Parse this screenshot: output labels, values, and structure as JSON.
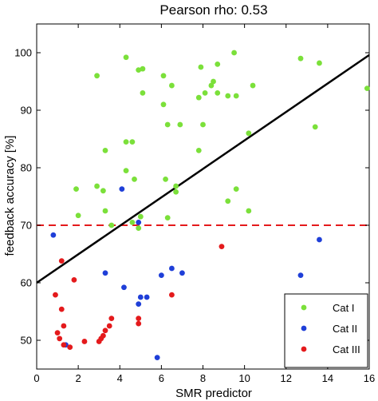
{
  "chart_data": {
    "type": "scatter",
    "title": "Pearson  rho:  0.53",
    "xlabel": "SMR predictor",
    "ylabel": "feedback accuracy  [%]",
    "xlim": [
      0,
      16
    ],
    "ylim": [
      45,
      105
    ],
    "xticks": [
      0,
      2,
      4,
      6,
      8,
      10,
      12,
      14,
      16
    ],
    "yticks": [
      50,
      60,
      70,
      80,
      90,
      100
    ],
    "grid": false,
    "legend_position": "bottom-right",
    "threshold_line": {
      "y": 70,
      "color": "#e41a1c",
      "style": "dashed"
    },
    "regression_line": {
      "x": [
        0,
        16
      ],
      "y": [
        60,
        99.6
      ],
      "color": "#000000"
    },
    "series": [
      {
        "name": "Cat I",
        "color": "#7be03a",
        "points": [
          [
            2.9,
            96
          ],
          [
            4.3,
            99.2
          ],
          [
            4.9,
            97
          ],
          [
            5.1,
            97.2
          ],
          [
            5.1,
            93
          ],
          [
            6.1,
            96
          ],
          [
            6.5,
            94.3
          ],
          [
            6.1,
            91
          ],
          [
            6.3,
            87.5
          ],
          [
            6.9,
            87.5
          ],
          [
            7.8,
            92.2
          ],
          [
            7.9,
            97.5
          ],
          [
            8.0,
            87.5
          ],
          [
            8.1,
            93
          ],
          [
            8.4,
            94.3
          ],
          [
            8.5,
            95
          ],
          [
            8.7,
            98
          ],
          [
            8.7,
            93
          ],
          [
            9.2,
            92.5
          ],
          [
            9.5,
            100
          ],
          [
            9.6,
            92.5
          ],
          [
            10.2,
            86
          ],
          [
            10.4,
            94.3
          ],
          [
            12.7,
            99
          ],
          [
            13.6,
            98.2
          ],
          [
            13.4,
            87.1
          ],
          [
            15.9,
            93.8
          ],
          [
            3.3,
            83
          ],
          [
            4.3,
            84.5
          ],
          [
            4.6,
            84.5
          ],
          [
            7.8,
            83
          ],
          [
            1.9,
            76.3
          ],
          [
            2.9,
            76.8
          ],
          [
            3.2,
            76
          ],
          [
            4.3,
            79.5
          ],
          [
            4.7,
            78
          ],
          [
            6.2,
            78
          ],
          [
            6.7,
            76.8
          ],
          [
            6.7,
            75.8
          ],
          [
            2.0,
            71.7
          ],
          [
            3.3,
            72.5
          ],
          [
            3.6,
            70
          ],
          [
            4.6,
            70.5
          ],
          [
            5.0,
            71.5
          ],
          [
            6.3,
            71.3
          ],
          [
            9.6,
            76.3
          ],
          [
            9.2,
            74.2
          ],
          [
            10.2,
            72.5
          ],
          [
            4.9,
            69.5
          ]
        ]
      },
      {
        "name": "Cat II",
        "color": "#1f3fd8",
        "points": [
          [
            0.8,
            68.3
          ],
          [
            4.1,
            76.3
          ],
          [
            4.9,
            70.5
          ],
          [
            3.3,
            61.7
          ],
          [
            4.2,
            59.2
          ],
          [
            5.0,
            57.5
          ],
          [
            4.9,
            56.3
          ],
          [
            5.3,
            57.5
          ],
          [
            6.0,
            61.3
          ],
          [
            6.5,
            62.5
          ],
          [
            7.0,
            61.7
          ],
          [
            5.8,
            47
          ],
          [
            1.4,
            49.2
          ],
          [
            12.7,
            61.3
          ],
          [
            13.6,
            67.5
          ]
        ]
      },
      {
        "name": "Cat III",
        "color": "#e41a1c",
        "points": [
          [
            1.2,
            63.8
          ],
          [
            1.8,
            60.5
          ],
          [
            0.9,
            57.9
          ],
          [
            1.2,
            55.4
          ],
          [
            1.0,
            51.3
          ],
          [
            1.3,
            52.5
          ],
          [
            1.1,
            50.3
          ],
          [
            1.3,
            49.2
          ],
          [
            1.6,
            48.8
          ],
          [
            2.3,
            49.8
          ],
          [
            3.0,
            49.8
          ],
          [
            3.1,
            50.3
          ],
          [
            3.2,
            50.8
          ],
          [
            3.3,
            51.7
          ],
          [
            3.5,
            52.5
          ],
          [
            3.6,
            53.8
          ],
          [
            4.9,
            53.8
          ],
          [
            4.9,
            52.9
          ],
          [
            6.5,
            57.9
          ],
          [
            8.9,
            66.3
          ]
        ]
      }
    ]
  }
}
